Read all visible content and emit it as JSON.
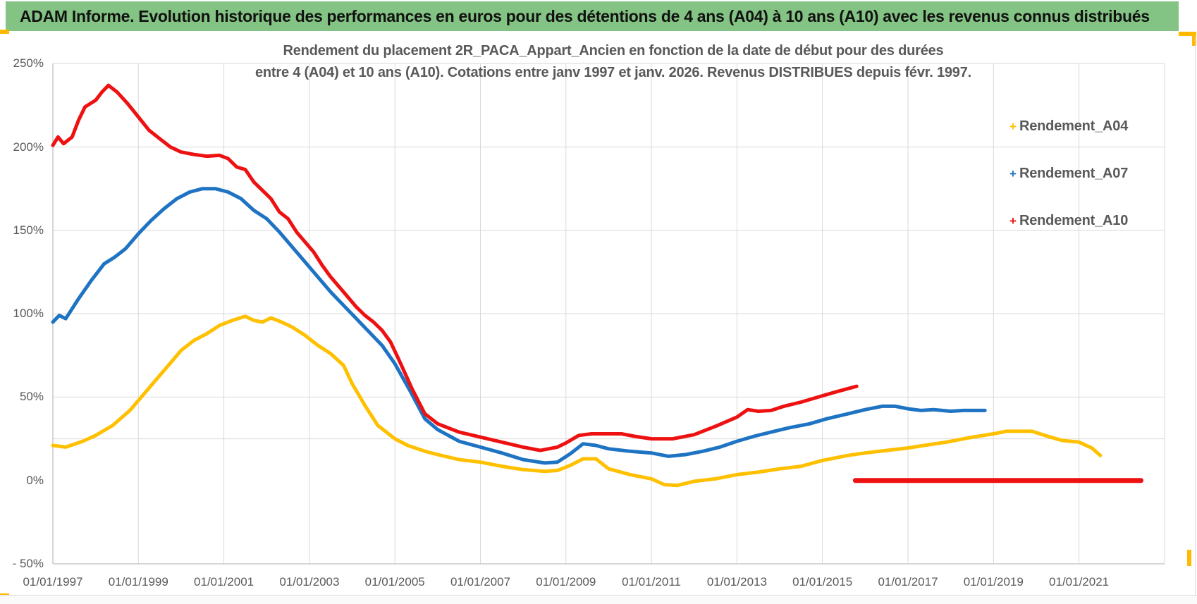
{
  "header": {
    "title": "ADAM Informe. Evolution historique des performances en euros pour des détentions de 4 ans (A04) à 10 ans (A10) avec les revenus connus distribués"
  },
  "chart": {
    "title_line1": "Rendement du placement 2R_PACA_Appart_Ancien en fonction de la date de début pour des durées",
    "title_line2": "entre 4 (A04) et 10 ans (A10). Cotations entre janv 1997 et janv. 2026. Revenus DISTRIBUES depuis févr. 1997.",
    "colors": {
      "header_green": "#83C383",
      "accent_amber": "#FFB900",
      "text_gray": "#595959",
      "gridline": "#D9D9D9",
      "axis_line": "#BFBFBF",
      "series_a04": "#FFC000",
      "series_a07": "#1E73C3",
      "series_a10": "#EE1111"
    }
  },
  "chart_data": {
    "type": "line",
    "title": "Rendement du placement 2R_PACA_Appart_Ancien en fonction de la date de début pour des durées entre 4 (A04) et 10 ans (A10). Cotations entre janv 1997 et janv. 2026. Revenus DISTRIBUES depuis févr. 1997.",
    "legend_position": "right",
    "grid": true,
    "x_axis": {
      "tick_labels": [
        "01/01/1997",
        "01/01/1999",
        "01/01/2001",
        "01/01/2003",
        "01/01/2005",
        "01/01/2007",
        "01/01/2009",
        "01/01/2011",
        "01/01/2013",
        "01/01/2015",
        "01/01/2017",
        "01/01/2019",
        "01/01/2021"
      ],
      "tick_years": [
        1997,
        1999,
        2001,
        2003,
        2005,
        2007,
        2009,
        2011,
        2013,
        2015,
        2017,
        2019,
        2021
      ],
      "range_years": [
        1997,
        2023
      ],
      "gridline_interval_years": 2
    },
    "y_axis": {
      "tick_labels": [
        "250%",
        "200%",
        "150%",
        "100%",
        "50%",
        "0%",
        "- 50%"
      ],
      "tick_values": [
        250,
        200,
        150,
        100,
        50,
        0,
        -50
      ],
      "gridline_values": [
        250,
        200,
        150,
        100,
        50,
        25
      ],
      "unit": "percent",
      "range": [
        -50,
        250
      ]
    },
    "series": [
      {
        "name": "Rendement_A04",
        "color": "#FFC000",
        "marker": "+",
        "points": [
          [
            1997.0,
            21
          ],
          [
            1997.3,
            20
          ],
          [
            1997.7,
            23.5
          ],
          [
            1998.0,
            27
          ],
          [
            1998.4,
            33
          ],
          [
            1998.8,
            42
          ],
          [
            1999.1,
            51
          ],
          [
            1999.4,
            60
          ],
          [
            1999.7,
            69
          ],
          [
            2000.0,
            78
          ],
          [
            2000.3,
            84
          ],
          [
            2000.6,
            88
          ],
          [
            2000.9,
            93
          ],
          [
            2001.2,
            96
          ],
          [
            2001.5,
            98.5
          ],
          [
            2001.7,
            96
          ],
          [
            2001.9,
            95
          ],
          [
            2002.1,
            97.5
          ],
          [
            2002.35,
            95
          ],
          [
            2002.6,
            92
          ],
          [
            2002.9,
            87
          ],
          [
            2003.2,
            81
          ],
          [
            2003.5,
            76
          ],
          [
            2003.8,
            69
          ],
          [
            2004.0,
            58
          ],
          [
            2004.3,
            45
          ],
          [
            2004.6,
            33
          ],
          [
            2005.0,
            25
          ],
          [
            2005.3,
            21
          ],
          [
            2005.7,
            17.5
          ],
          [
            2006.0,
            15.5
          ],
          [
            2006.5,
            12.5
          ],
          [
            2007.0,
            11
          ],
          [
            2007.5,
            8.5
          ],
          [
            2008.0,
            6.5
          ],
          [
            2008.5,
            5.5
          ],
          [
            2008.8,
            6
          ],
          [
            2009.1,
            9
          ],
          [
            2009.4,
            13
          ],
          [
            2009.7,
            13
          ],
          [
            2010.0,
            7
          ],
          [
            2010.5,
            3.5
          ],
          [
            2011.0,
            1
          ],
          [
            2011.3,
            -2.5
          ],
          [
            2011.6,
            -3
          ],
          [
            2012.0,
            -0.5
          ],
          [
            2012.5,
            1
          ],
          [
            2013.0,
            3.5
          ],
          [
            2013.5,
            5
          ],
          [
            2014.0,
            7
          ],
          [
            2014.5,
            8.5
          ],
          [
            2015.0,
            12
          ],
          [
            2015.6,
            15
          ],
          [
            2016.0,
            16.5
          ],
          [
            2016.5,
            18
          ],
          [
            2017.0,
            19.5
          ],
          [
            2017.5,
            21.5
          ],
          [
            2017.9,
            23
          ],
          [
            2018.4,
            25.5
          ],
          [
            2019.0,
            28
          ],
          [
            2019.3,
            29.5
          ],
          [
            2019.9,
            29.5
          ],
          [
            2020.2,
            27
          ],
          [
            2020.6,
            24
          ],
          [
            2021.0,
            23
          ],
          [
            2021.3,
            19.5
          ],
          [
            2021.5,
            15
          ]
        ]
      },
      {
        "name": "Rendement_A07",
        "color": "#1E73C3",
        "marker": "+",
        "points": [
          [
            1997.0,
            95
          ],
          [
            1997.15,
            99
          ],
          [
            1997.3,
            97
          ],
          [
            1997.6,
            109
          ],
          [
            1997.9,
            120
          ],
          [
            1998.2,
            130
          ],
          [
            1998.45,
            134
          ],
          [
            1998.7,
            139
          ],
          [
            1999.0,
            148
          ],
          [
            1999.3,
            156
          ],
          [
            1999.6,
            163
          ],
          [
            1999.9,
            169
          ],
          [
            2000.2,
            173
          ],
          [
            2000.5,
            175
          ],
          [
            2000.8,
            175
          ],
          [
            2001.1,
            173
          ],
          [
            2001.4,
            169
          ],
          [
            2001.7,
            162
          ],
          [
            2002.0,
            157
          ],
          [
            2002.3,
            149
          ],
          [
            2002.6,
            140
          ],
          [
            2002.9,
            131
          ],
          [
            2003.2,
            122
          ],
          [
            2003.5,
            113
          ],
          [
            2003.8,
            105
          ],
          [
            2004.1,
            97
          ],
          [
            2004.4,
            89
          ],
          [
            2004.7,
            81
          ],
          [
            2005.0,
            70
          ],
          [
            2005.35,
            54
          ],
          [
            2005.7,
            37
          ],
          [
            2006.0,
            30.5
          ],
          [
            2006.5,
            23.5
          ],
          [
            2007.0,
            20
          ],
          [
            2007.5,
            16.5
          ],
          [
            2008.0,
            12.5
          ],
          [
            2008.5,
            10.5
          ],
          [
            2008.8,
            11
          ],
          [
            2009.1,
            16
          ],
          [
            2009.4,
            22
          ],
          [
            2009.7,
            21
          ],
          [
            2010.0,
            19
          ],
          [
            2010.5,
            17.5
          ],
          [
            2011.0,
            16.5
          ],
          [
            2011.4,
            14.5
          ],
          [
            2011.8,
            15.5
          ],
          [
            2012.2,
            17.5
          ],
          [
            2012.6,
            20
          ],
          [
            2013.0,
            23.5
          ],
          [
            2013.4,
            26.5
          ],
          [
            2013.8,
            29
          ],
          [
            2014.2,
            31.5
          ],
          [
            2014.7,
            34
          ],
          [
            2015.1,
            37
          ],
          [
            2015.6,
            40
          ],
          [
            2016.0,
            42.5
          ],
          [
            2016.4,
            44.5
          ],
          [
            2016.7,
            44.5
          ],
          [
            2017.0,
            43
          ],
          [
            2017.3,
            42
          ],
          [
            2017.6,
            42.5
          ],
          [
            2018.0,
            41.5
          ],
          [
            2018.3,
            42
          ],
          [
            2018.6,
            42
          ],
          [
            2018.8,
            42
          ]
        ]
      },
      {
        "name": "Rendement_A10",
        "color": "#EE1111",
        "marker": "+",
        "points": [
          [
            1997.0,
            201
          ],
          [
            1997.12,
            206
          ],
          [
            1997.25,
            202
          ],
          [
            1997.45,
            206
          ],
          [
            1997.6,
            216
          ],
          [
            1997.75,
            224
          ],
          [
            1998.0,
            228
          ],
          [
            1998.15,
            233
          ],
          [
            1998.3,
            237
          ],
          [
            1998.5,
            233
          ],
          [
            1998.75,
            226
          ],
          [
            1999.0,
            218
          ],
          [
            1999.25,
            210
          ],
          [
            1999.5,
            205
          ],
          [
            1999.75,
            200
          ],
          [
            2000.0,
            197
          ],
          [
            2000.3,
            195.5
          ],
          [
            2000.6,
            194.5
          ],
          [
            2000.9,
            195
          ],
          [
            2001.1,
            193
          ],
          [
            2001.3,
            188
          ],
          [
            2001.5,
            186.5
          ],
          [
            2001.7,
            179
          ],
          [
            2001.9,
            174
          ],
          [
            2002.1,
            169
          ],
          [
            2002.3,
            161
          ],
          [
            2002.5,
            157
          ],
          [
            2002.7,
            149
          ],
          [
            2002.9,
            143
          ],
          [
            2003.1,
            137
          ],
          [
            2003.3,
            129
          ],
          [
            2003.5,
            122
          ],
          [
            2003.7,
            116
          ],
          [
            2003.9,
            110
          ],
          [
            2004.1,
            104
          ],
          [
            2004.3,
            99
          ],
          [
            2004.5,
            95
          ],
          [
            2004.7,
            90
          ],
          [
            2004.9,
            83
          ],
          [
            2005.1,
            72
          ],
          [
            2005.4,
            55
          ],
          [
            2005.7,
            40
          ],
          [
            2006.0,
            34
          ],
          [
            2006.5,
            29
          ],
          [
            2007.0,
            26
          ],
          [
            2007.5,
            23
          ],
          [
            2008.0,
            20
          ],
          [
            2008.4,
            18
          ],
          [
            2008.8,
            20
          ],
          [
            2009.0,
            22.5
          ],
          [
            2009.3,
            27
          ],
          [
            2009.6,
            28
          ],
          [
            2010.0,
            28
          ],
          [
            2010.3,
            28
          ],
          [
            2010.6,
            26.5
          ],
          [
            2011.0,
            25
          ],
          [
            2011.5,
            25
          ],
          [
            2012.0,
            27.5
          ],
          [
            2012.5,
            32.5
          ],
          [
            2013.0,
            38
          ],
          [
            2013.25,
            42.5
          ],
          [
            2013.5,
            41.5
          ],
          [
            2013.8,
            42
          ],
          [
            2014.1,
            44.5
          ],
          [
            2014.5,
            47
          ],
          [
            2014.9,
            50
          ],
          [
            2015.3,
            53
          ],
          [
            2015.8,
            56.5
          ]
        ],
        "flat_zero_segment": {
          "from_year": 2015.77,
          "to_year": 2022.45,
          "value_percent": 0
        }
      }
    ]
  }
}
